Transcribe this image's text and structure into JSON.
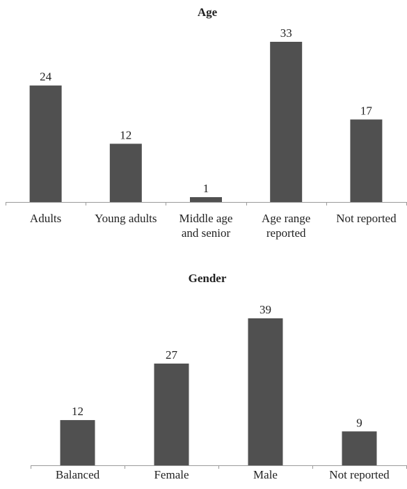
{
  "bar_color": "#505050",
  "axis_color": "#9a9a9a",
  "chart_data": [
    {
      "type": "bar",
      "title": "Age",
      "categories": [
        [
          "Adults"
        ],
        [
          "Young adults"
        ],
        [
          "Middle age",
          "and senior"
        ],
        [
          "Age range",
          "reported"
        ],
        [
          "Not reported"
        ]
      ],
      "values": [
        24,
        12,
        1,
        33,
        17
      ],
      "ylim": [
        0,
        33
      ]
    },
    {
      "type": "bar",
      "title": "Gender",
      "categories": [
        [
          "Balanced"
        ],
        [
          "Female"
        ],
        [
          "Male"
        ],
        [
          "Not reported"
        ]
      ],
      "values": [
        12,
        27,
        39,
        9
      ],
      "ylim": [
        0,
        39
      ]
    }
  ]
}
